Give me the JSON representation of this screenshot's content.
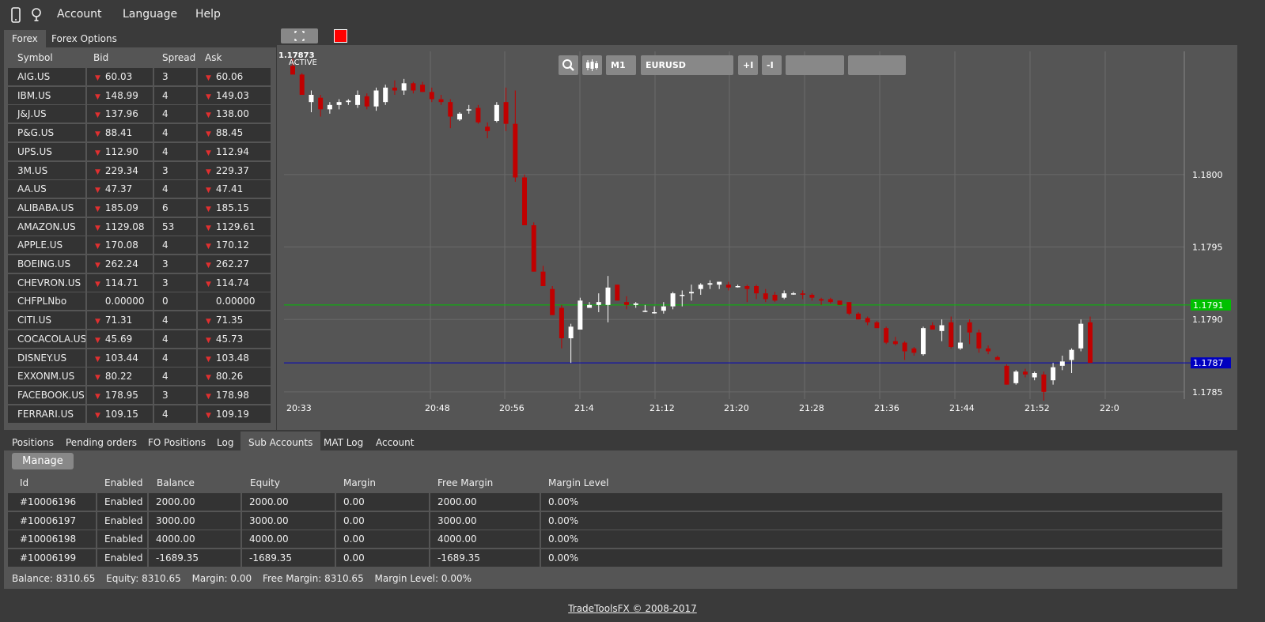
{
  "menu": {
    "account": "Account",
    "language": "Language",
    "help": "Help"
  },
  "left_tabs": [
    "Forex",
    "Forex Options"
  ],
  "symbols_header": {
    "symbol": "Symbol",
    "bid": "Bid",
    "spread": "Spread",
    "ask": "Ask"
  },
  "symbols": [
    {
      "symbol": "AIG.US",
      "bid": "60.03",
      "spread": "3",
      "ask": "60.06",
      "down": true
    },
    {
      "symbol": "IBM.US",
      "bid": "148.99",
      "spread": "4",
      "ask": "149.03",
      "down": true
    },
    {
      "symbol": "J&J.US",
      "bid": "137.96",
      "spread": "4",
      "ask": "138.00",
      "down": true
    },
    {
      "symbol": "P&G.US",
      "bid": "88.41",
      "spread": "4",
      "ask": "88.45",
      "down": true
    },
    {
      "symbol": "UPS.US",
      "bid": "112.90",
      "spread": "4",
      "ask": "112.94",
      "down": true
    },
    {
      "symbol": "3M.US",
      "bid": "229.34",
      "spread": "3",
      "ask": "229.37",
      "down": true
    },
    {
      "symbol": "AA.US",
      "bid": "47.37",
      "spread": "4",
      "ask": "47.41",
      "down": true
    },
    {
      "symbol": "ALIBABA.US",
      "bid": "185.09",
      "spread": "6",
      "ask": "185.15",
      "down": true
    },
    {
      "symbol": "AMAZON.US",
      "bid": "1129.08",
      "spread": "53",
      "ask": "1129.61",
      "down": true
    },
    {
      "symbol": "APPLE.US",
      "bid": "170.08",
      "spread": "4",
      "ask": "170.12",
      "down": true
    },
    {
      "symbol": "BOEING.US",
      "bid": "262.24",
      "spread": "3",
      "ask": "262.27",
      "down": true
    },
    {
      "symbol": "CHEVRON.US",
      "bid": "114.71",
      "spread": "3",
      "ask": "114.74",
      "down": true
    },
    {
      "symbol": "CHFPLNbo",
      "bid": "0.00000",
      "spread": "0",
      "ask": "0.00000",
      "down": false
    },
    {
      "symbol": "CITI.US",
      "bid": "71.31",
      "spread": "4",
      "ask": "71.35",
      "down": true
    },
    {
      "symbol": "COCACOLA.US",
      "bid": "45.69",
      "spread": "4",
      "ask": "45.73",
      "down": true
    },
    {
      "symbol": "DISNEY.US",
      "bid": "103.44",
      "spread": "4",
      "ask": "103.48",
      "down": true
    },
    {
      "symbol": "EXXONM.US",
      "bid": "80.22",
      "spread": "4",
      "ask": "80.26",
      "down": true
    },
    {
      "symbol": "FACEBOOK.US",
      "bid": "178.95",
      "spread": "3",
      "ask": "178.98",
      "down": true
    },
    {
      "symbol": "FERRARI.US",
      "bid": "109.15",
      "spread": "4",
      "ask": "109.19",
      "down": true
    }
  ],
  "chart": {
    "status_price": "1.17873",
    "status_text": "ACTIVE",
    "timeframe": "M1",
    "instrument": "EURUSD",
    "zoom_in": "+I",
    "zoom_out": "-I",
    "green_level": "1.1791",
    "blue_level": "1.1787",
    "colors": {
      "up": "#ffffff",
      "down": "#c00000",
      "green_line": "#00c000",
      "blue_line": "#0000c0",
      "flag": "#ff0000"
    }
  },
  "chart_data": {
    "type": "candlestick",
    "x_tick_labels": [
      "20:33",
      "20:48",
      "20:56",
      "21:4",
      "21:12",
      "21:20",
      "21:28",
      "21:36",
      "21:44",
      "21:52",
      "22:0"
    ],
    "y_tick_labels": [
      "1.1800",
      "1.1795",
      "1.1790",
      "1.1785"
    ],
    "ylim": [
      1.17845,
      1.18085
    ],
    "horizontal_lines": [
      {
        "value": 1.1791,
        "label": "1.1791",
        "color": "green"
      },
      {
        "value": 1.1787,
        "label": "1.1787",
        "color": "blue"
      }
    ],
    "candles": [
      [
        1.18075,
        1.1808,
        1.1807,
        1.18069
      ],
      [
        1.18069,
        1.1807,
        1.18055,
        1.18055
      ],
      [
        1.1805,
        1.18058,
        1.18043,
        1.18055
      ],
      [
        1.18053,
        1.18055,
        1.1804,
        1.18045
      ],
      [
        1.18045,
        1.1805,
        1.18042,
        1.18048
      ],
      [
        1.18048,
        1.18052,
        1.18045,
        1.1805
      ],
      [
        1.1805,
        1.18052,
        1.18048,
        1.18051
      ],
      [
        1.18048,
        1.18058,
        1.18046,
        1.18055
      ],
      [
        1.18054,
        1.18056,
        1.18045,
        1.18047
      ],
      [
        1.18047,
        1.1806,
        1.18044,
        1.18058
      ],
      [
        1.1805,
        1.18062,
        1.18048,
        1.1806
      ],
      [
        1.1806,
        1.18065,
        1.18055,
        1.18058
      ],
      [
        1.18058,
        1.18066,
        1.18055,
        1.18063
      ],
      [
        1.18063,
        1.18064,
        1.18056,
        1.18058
      ],
      [
        1.18062,
        1.18064,
        1.18057,
        1.18057
      ],
      [
        1.18057,
        1.1806,
        1.1805,
        1.18052
      ],
      [
        1.18052,
        1.18055,
        1.18048,
        1.1805
      ],
      [
        1.1805,
        1.18052,
        1.18032,
        1.1804
      ],
      [
        1.18038,
        1.18043,
        1.18037,
        1.18042
      ],
      [
        1.18045,
        1.18048,
        1.18042,
        1.18045
      ],
      [
        1.18046,
        1.18048,
        1.18035,
        1.18036
      ],
      [
        1.18033,
        1.18036,
        1.18025,
        1.1803
      ],
      [
        1.18037,
        1.1805,
        1.18036,
        1.18048
      ],
      [
        1.1805,
        1.1806,
        1.1803,
        1.18035
      ],
      [
        1.18035,
        1.18058,
        1.17995,
        1.17998
      ],
      [
        1.17998,
        1.18,
        1.17965,
        1.17965
      ],
      [
        1.17965,
        1.17967,
        1.17933,
        1.17933
      ],
      [
        1.17933,
        1.17937,
        1.17923,
        1.17923
      ],
      [
        1.17921,
        1.17923,
        1.17903,
        1.17903
      ],
      [
        1.17908,
        1.1791,
        1.1788,
        1.17887
      ],
      [
        1.17887,
        1.17897,
        1.1787,
        1.17895
      ],
      [
        1.17893,
        1.17915,
        1.17893,
        1.17913
      ],
      [
        1.17908,
        1.17912,
        1.17908,
        1.1791
      ],
      [
        1.1791,
        1.17918,
        1.17905,
        1.17912
      ],
      [
        1.1791,
        1.1793,
        1.17898,
        1.17922
      ],
      [
        1.17924,
        1.17924,
        1.17913,
        1.17913
      ],
      [
        1.17912,
        1.17916,
        1.17907,
        1.1791
      ],
      [
        1.1791,
        1.17912,
        1.17908,
        1.17911
      ],
      [
        1.17906,
        1.1791,
        1.17905,
        1.17906
      ],
      [
        1.17905,
        1.17909,
        1.17904,
        1.17905
      ],
      [
        1.17906,
        1.17912,
        1.17904,
        1.17909
      ],
      [
        1.17909,
        1.17919,
        1.17907,
        1.17918
      ],
      [
        1.17917,
        1.1792,
        1.17909,
        1.17917
      ],
      [
        1.17918,
        1.17924,
        1.17913,
        1.17919
      ],
      [
        1.17921,
        1.17925,
        1.17917,
        1.17924
      ],
      [
        1.17924,
        1.17927,
        1.17921,
        1.17925
      ],
      [
        1.17924,
        1.17926,
        1.17921,
        1.17926
      ],
      [
        1.17924,
        1.17926,
        1.1792,
        1.17922
      ],
      [
        1.17923,
        1.17924,
        1.17922,
        1.17923
      ],
      [
        1.17923,
        1.17924,
        1.17912,
        1.17921
      ],
      [
        1.17923,
        1.17924,
        1.17914,
        1.17918
      ],
      [
        1.17918,
        1.17921,
        1.17912,
        1.17914
      ],
      [
        1.17917,
        1.17919,
        1.17912,
        1.17913
      ],
      [
        1.17915,
        1.1792,
        1.17914,
        1.17918
      ],
      [
        1.17918,
        1.17919,
        1.17917,
        1.17918
      ],
      [
        1.17918,
        1.1792,
        1.17914,
        1.17917
      ],
      [
        1.17917,
        1.17918,
        1.17913,
        1.17915
      ],
      [
        1.17914,
        1.17915,
        1.1791,
        1.17913
      ],
      [
        1.17914,
        1.17915,
        1.17911,
        1.17912
      ],
      [
        1.17913,
        1.17913,
        1.1791,
        1.1791
      ],
      [
        1.17912,
        1.17912,
        1.17903,
        1.17904
      ],
      [
        1.17904,
        1.17905,
        1.179,
        1.179
      ],
      [
        1.17901,
        1.17902,
        1.17896,
        1.17898
      ],
      [
        1.17898,
        1.17899,
        1.17894,
        1.17894
      ],
      [
        1.17894,
        1.17895,
        1.17883,
        1.17884
      ],
      [
        1.17885,
        1.17888,
        1.17882,
        1.17883
      ],
      [
        1.17884,
        1.17885,
        1.17872,
        1.17878
      ],
      [
        1.1788,
        1.17881,
        1.17875,
        1.17877
      ],
      [
        1.17876,
        1.17895,
        1.17875,
        1.17894
      ],
      [
        1.17896,
        1.17898,
        1.17894,
        1.17893
      ],
      [
        1.17892,
        1.179,
        1.17885,
        1.17896
      ],
      [
        1.17898,
        1.17902,
        1.1788,
        1.17881
      ],
      [
        1.1788,
        1.17896,
        1.17879,
        1.17884
      ],
      [
        1.17898,
        1.179,
        1.17883,
        1.17891
      ],
      [
        1.17891,
        1.17893,
        1.17877,
        1.1788
      ],
      [
        1.1788,
        1.17882,
        1.17876,
        1.17878
      ],
      [
        1.17874,
        1.17875,
        1.17872,
        1.17872
      ],
      [
        1.17868,
        1.17869,
        1.17855,
        1.17855
      ],
      [
        1.17856,
        1.17865,
        1.17855,
        1.17864
      ],
      [
        1.17864,
        1.17866,
        1.1786,
        1.17862
      ],
      [
        1.1786,
        1.17864,
        1.17858,
        1.17863
      ],
      [
        1.17862,
        1.17864,
        1.17844,
        1.1785
      ],
      [
        1.17858,
        1.1787,
        1.17855,
        1.17867
      ],
      [
        1.17868,
        1.17875,
        1.17865,
        1.17871
      ],
      [
        1.17872,
        1.1788,
        1.17863,
        1.17879
      ],
      [
        1.1788,
        1.179,
        1.17878,
        1.17897
      ],
      [
        1.17898,
        1.17902,
        1.1787,
        1.1787
      ]
    ]
  },
  "bottom_tabs": [
    "Positions",
    "Pending orders",
    "FO Positions",
    "Log",
    "Sub Accounts",
    "MAT Log",
    "Account"
  ],
  "active_bottom_tab": 4,
  "manage_label": "Manage",
  "accounts_header": {
    "id": "Id",
    "enabled": "Enabled",
    "balance": "Balance",
    "equity": "Equity",
    "margin": "Margin",
    "free_margin": "Free Margin",
    "margin_level": "Margin Level"
  },
  "accounts": [
    {
      "id": "#10006196",
      "enabled": "Enabled",
      "balance": "2000.00",
      "equity": "2000.00",
      "margin": "0.00",
      "free_margin": "2000.00",
      "margin_level": "0.00%"
    },
    {
      "id": "#10006197",
      "enabled": "Enabled",
      "balance": "3000.00",
      "equity": "3000.00",
      "margin": "0.00",
      "free_margin": "3000.00",
      "margin_level": "0.00%"
    },
    {
      "id": "#10006198",
      "enabled": "Enabled",
      "balance": "4000.00",
      "equity": "4000.00",
      "margin": "0.00",
      "free_margin": "4000.00",
      "margin_level": "0.00%"
    },
    {
      "id": "#10006199",
      "enabled": "Enabled",
      "balance": "-1689.35",
      "equity": "-1689.35",
      "margin": "0.00",
      "free_margin": "-1689.35",
      "margin_level": "0.00%"
    }
  ],
  "summary": {
    "balance": "Balance: 8310.65",
    "equity": "Equity: 8310.65",
    "margin": "Margin: 0.00",
    "free_margin": "Free Margin: 8310.65",
    "margin_level": "Margin Level: 0.00%"
  },
  "footer": "TradeToolsFX © 2008-2017"
}
